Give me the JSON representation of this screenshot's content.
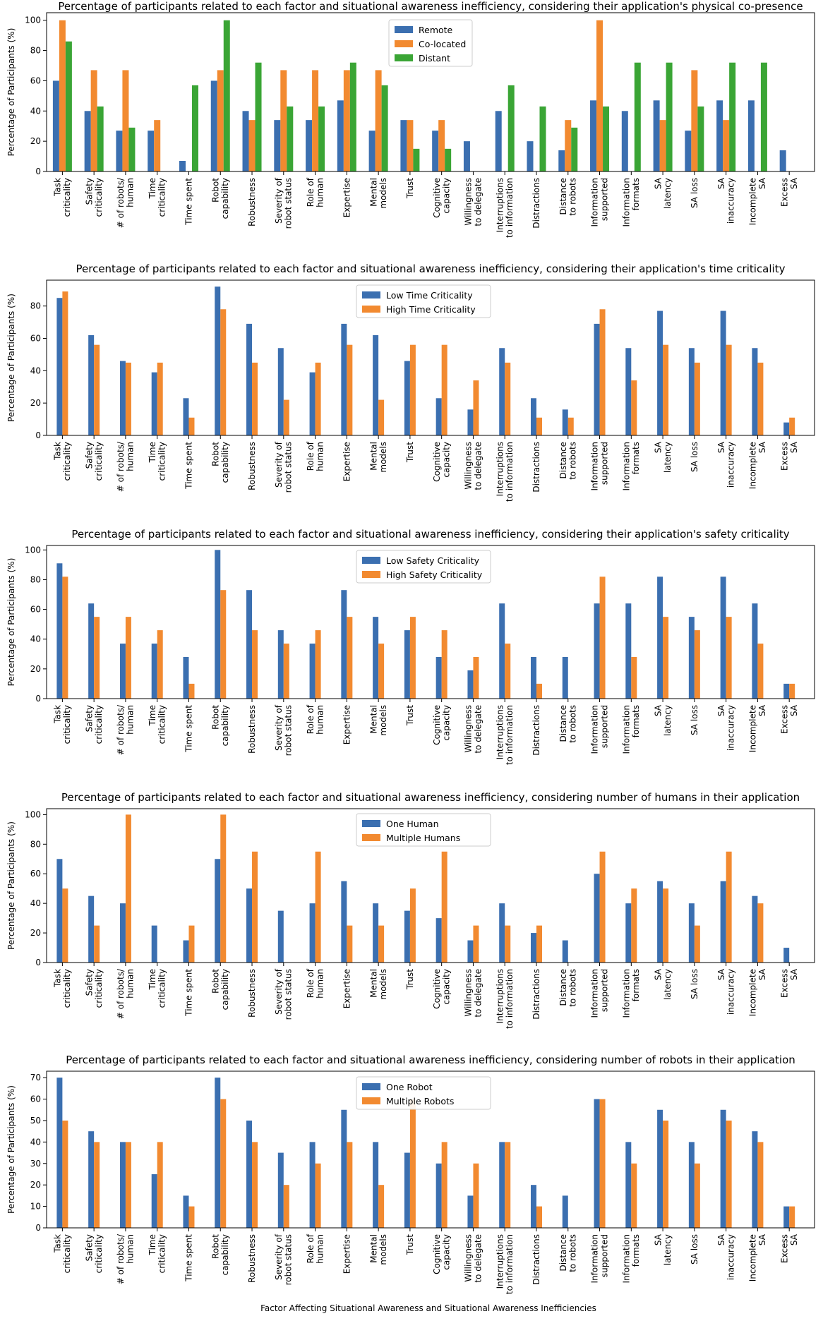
{
  "colors": {
    "blue": "#3b6fb0",
    "orange": "#f28a30",
    "green": "#3aa535"
  },
  "categories": [
    [
      "Task",
      "criticality"
    ],
    [
      "Safety",
      "criticality"
    ],
    [
      "# of robots/",
      "human"
    ],
    [
      "Time",
      "criticality"
    ],
    [
      "Time spent"
    ],
    [
      "Robot",
      "capability"
    ],
    [
      "Robustness"
    ],
    [
      "Severity of",
      "robot status"
    ],
    [
      "Role of",
      "human"
    ],
    [
      "Expertise"
    ],
    [
      "Mental",
      "models"
    ],
    [
      "Trust"
    ],
    [
      "Cognitive",
      "capacity"
    ],
    [
      "Willingness",
      "to delegate"
    ],
    [
      "Interruptions",
      "to information"
    ],
    [
      "Distractions"
    ],
    [
      "Distance",
      "to robots"
    ],
    [
      "Information",
      "supported"
    ],
    [
      "Information",
      "formats"
    ],
    [
      "SA",
      "latency"
    ],
    [
      "SA loss"
    ],
    [
      "SA",
      "inaccuracy"
    ],
    [
      "Incomplete",
      "SA"
    ],
    [
      "Excess",
      "SA"
    ]
  ],
  "x_axis_label": "Factor Affecting Situational Awareness and Situational Awareness Inefficiencies",
  "chart_data": [
    {
      "type": "bar",
      "title": "Percentage of participants related to each factor and situational awareness inefficiency, considering their application's physical co-presence",
      "ylabel": "Percentage of Participants (%)",
      "ylim": [
        0,
        105
      ],
      "yticks": [
        0,
        20,
        40,
        60,
        80,
        100
      ],
      "legend_position": "top-center",
      "series": [
        {
          "name": "Remote",
          "color": "#3b6fb0",
          "values": [
            60,
            40,
            27,
            27,
            7,
            60,
            40,
            34,
            34,
            47,
            27,
            34,
            27,
            20,
            40,
            20,
            14,
            47,
            40,
            47,
            27,
            47,
            47,
            14
          ]
        },
        {
          "name": "Co-located",
          "color": "#f28a30",
          "values": [
            100,
            67,
            67,
            34,
            0,
            67,
            34,
            67,
            67,
            67,
            67,
            34,
            34,
            0,
            0,
            0,
            34,
            100,
            0,
            34,
            67,
            34,
            0,
            0
          ]
        },
        {
          "name": "Distant",
          "color": "#3aa535",
          "values": [
            86,
            43,
            29,
            0,
            57,
            100,
            72,
            43,
            43,
            72,
            57,
            15,
            15,
            0,
            57,
            43,
            29,
            43,
            72,
            72,
            43,
            72,
            72,
            0
          ]
        }
      ]
    },
    {
      "type": "bar",
      "title": "Percentage of participants related to each factor and situational awareness inefficiency, considering their application's time criticality",
      "ylabel": "Percentage of Participants (%)",
      "ylim": [
        0,
        96
      ],
      "yticks": [
        0,
        20,
        40,
        60,
        80
      ],
      "legend_position": "top-center",
      "series": [
        {
          "name": "Low Time Criticality",
          "color": "#3b6fb0",
          "values": [
            85,
            62,
            46,
            39,
            23,
            92,
            69,
            54,
            39,
            69,
            62,
            46,
            23,
            16,
            54,
            23,
            16,
            69,
            54,
            77,
            54,
            77,
            54,
            8
          ]
        },
        {
          "name": "High Time Criticality",
          "color": "#f28a30",
          "values": [
            89,
            56,
            45,
            45,
            11,
            78,
            45,
            22,
            45,
            56,
            22,
            56,
            56,
            34,
            45,
            11,
            11,
            78,
            34,
            56,
            45,
            56,
            45,
            11
          ]
        }
      ]
    },
    {
      "type": "bar",
      "title": "Percentage of participants related to each factor and situational awareness inefficiency, considering their application's safety criticality",
      "ylabel": "Percentage of Participants (%)",
      "ylim": [
        0,
        103
      ],
      "yticks": [
        0,
        20,
        40,
        60,
        80,
        100
      ],
      "legend_position": "top-center",
      "series": [
        {
          "name": "Low Safety Criticality",
          "color": "#3b6fb0",
          "values": [
            91,
            64,
            37,
            37,
            28,
            100,
            73,
            46,
            37,
            73,
            55,
            46,
            28,
            19,
            64,
            28,
            28,
            64,
            64,
            82,
            55,
            82,
            64,
            10
          ]
        },
        {
          "name": "High Safety Criticality",
          "color": "#f28a30",
          "values": [
            82,
            55,
            55,
            46,
            10,
            73,
            46,
            37,
            46,
            55,
            37,
            55,
            46,
            28,
            37,
            10,
            0,
            82,
            28,
            55,
            46,
            55,
            37,
            10
          ]
        }
      ]
    },
    {
      "type": "bar",
      "title": "Percentage of participants related to each factor and situational awareness inefficiency, considering number of humans in their application",
      "ylabel": "Percentage of Participants (%)",
      "ylim": [
        0,
        104
      ],
      "yticks": [
        0,
        20,
        40,
        60,
        80,
        100
      ],
      "legend_position": "top-center",
      "series": [
        {
          "name": "One Human",
          "color": "#3b6fb0",
          "values": [
            70,
            45,
            40,
            25,
            15,
            70,
            50,
            35,
            40,
            55,
            40,
            35,
            30,
            15,
            40,
            20,
            15,
            60,
            40,
            55,
            40,
            55,
            45,
            10
          ]
        },
        {
          "name": "Multiple Humans",
          "color": "#f28a30",
          "values": [
            50,
            25,
            100,
            0,
            25,
            100,
            75,
            0,
            75,
            25,
            25,
            50,
            75,
            25,
            25,
            25,
            0,
            75,
            50,
            50,
            25,
            75,
            40,
            0
          ]
        }
      ]
    },
    {
      "type": "bar",
      "title": "Percentage of participants related to each factor and situational awareness inefficiency, considering number of robots in their application",
      "ylabel": "Percentage of Participants (%)",
      "ylim": [
        0,
        73
      ],
      "yticks": [
        0,
        10,
        20,
        30,
        40,
        50,
        60,
        70
      ],
      "legend_position": "top-center",
      "series": [
        {
          "name": "One Robot",
          "color": "#3b6fb0",
          "values": [
            70,
            45,
            40,
            25,
            15,
            70,
            50,
            35,
            40,
            55,
            40,
            35,
            30,
            15,
            40,
            20,
            15,
            60,
            40,
            55,
            40,
            55,
            45,
            10
          ]
        },
        {
          "name": "Multiple Robots",
          "color": "#f28a30",
          "values": [
            50,
            40,
            40,
            40,
            10,
            60,
            40,
            20,
            30,
            40,
            20,
            60,
            40,
            30,
            40,
            10,
            0,
            60,
            30,
            50,
            30,
            50,
            40,
            10
          ]
        }
      ]
    }
  ]
}
